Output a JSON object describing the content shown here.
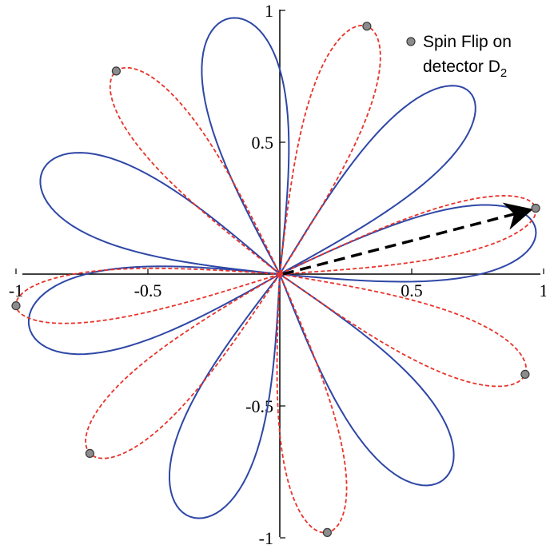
{
  "chart_data": {
    "type": "line",
    "title": "",
    "xlabel": "",
    "ylabel": "",
    "xlim": [
      -1,
      1
    ],
    "ylim": [
      -1,
      1
    ],
    "grid": false,
    "legend": {
      "position": "top-right",
      "marker": "gray circle",
      "line1": "Spin Flip on",
      "line2": "detector D",
      "subscript": "2"
    },
    "x_ticks": [
      {
        "value": -1,
        "label": "-1"
      },
      {
        "value": -0.5,
        "label": "-0.5"
      },
      {
        "value": 0.5,
        "label": "0.5"
      },
      {
        "value": 1,
        "label": "1"
      }
    ],
    "y_ticks": [
      {
        "value": 1,
        "label": "1"
      },
      {
        "value": 0.5,
        "label": "0.5"
      },
      {
        "value": -0.5,
        "label": "-0.5"
      },
      {
        "value": -1,
        "label": "-1"
      }
    ],
    "series": [
      {
        "style": "solid",
        "color": "#2e47a6",
        "petals": [
          {
            "tip": [
              -0.19,
              0.97
            ],
            "half_width": 0.08
          },
          {
            "tip": [
              0.72,
              0.69
            ],
            "half_width": 0.07
          },
          {
            "tip": [
              -0.9,
              0.39
            ],
            "half_width": 0.08
          },
          {
            "tip": [
              0.97,
              0.17
            ],
            "half_width": 0.07
          },
          {
            "tip": [
              -0.95,
              -0.2
            ],
            "half_width": 0.08
          },
          {
            "tip": [
              0.62,
              -0.78
            ],
            "half_width": 0.08
          },
          {
            "tip": [
              -0.34,
              -0.92
            ],
            "half_width": 0.08
          }
        ]
      },
      {
        "style": "dashed",
        "color": "#e8332a",
        "petals": [
          {
            "tip": [
              0.33,
              0.94
            ],
            "half_width": 0.06
          },
          {
            "tip": [
              -0.62,
              0.77
            ],
            "half_width": 0.06
          },
          {
            "tip": [
              0.97,
              0.25
            ],
            "half_width": 0.05
          },
          {
            "tip": [
              -1.0,
              -0.12
            ],
            "half_width": 0.05
          },
          {
            "tip": [
              0.93,
              -0.38
            ],
            "half_width": 0.06
          },
          {
            "tip": [
              -0.72,
              -0.68
            ],
            "half_width": 0.06
          },
          {
            "tip": [
              0.18,
              -0.98
            ],
            "half_width": 0.06
          }
        ]
      }
    ],
    "spin_flip_points": [
      {
        "x": 0.33,
        "y": 0.94
      },
      {
        "x": -0.62,
        "y": 0.77
      },
      {
        "x": 0.97,
        "y": 0.25
      },
      {
        "x": -1.0,
        "y": -0.12
      },
      {
        "x": 0.93,
        "y": -0.38
      },
      {
        "x": -0.72,
        "y": -0.68
      },
      {
        "x": 0.18,
        "y": -0.98
      }
    ],
    "arrow": {
      "from": [
        0.0,
        0.0
      ],
      "to": [
        0.97,
        0.25
      ],
      "style": "dashed",
      "color": "#000000"
    }
  }
}
